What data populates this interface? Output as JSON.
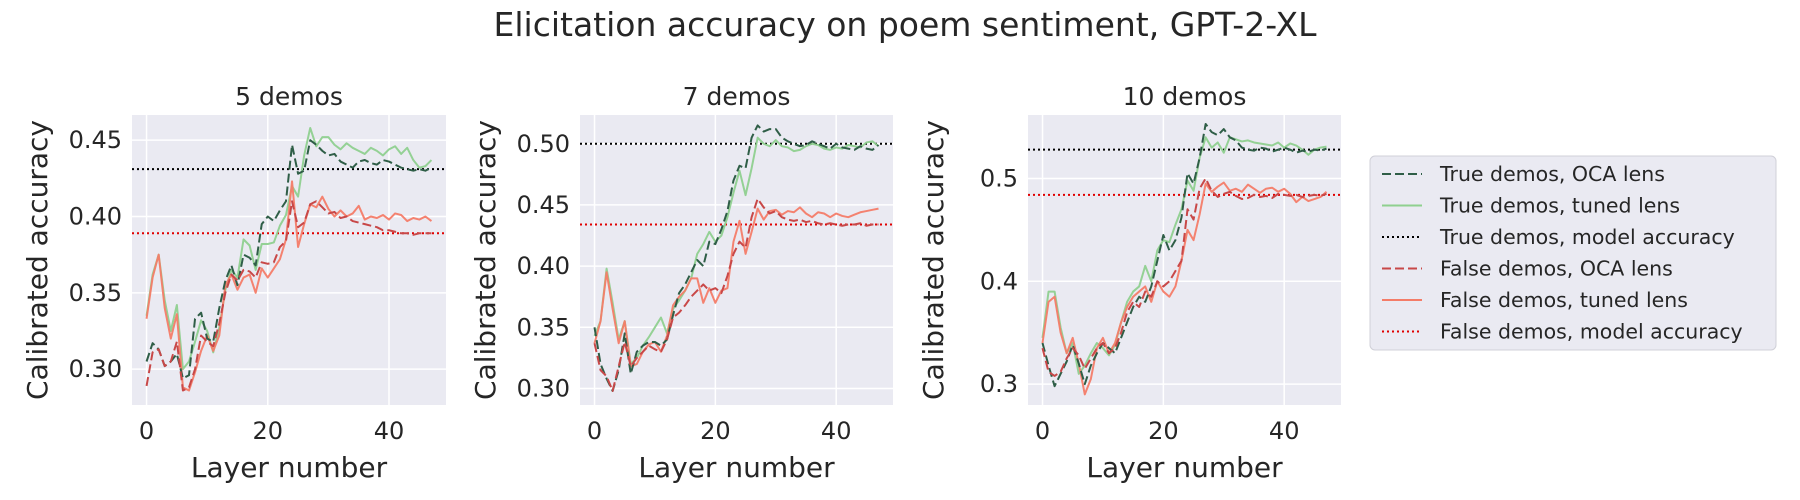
{
  "figure": {
    "title": "Elicitation accuracy on poem sentiment, GPT-2-XL"
  },
  "legend": {
    "placement": "right",
    "entries": [
      {
        "label": "True demos, OCA lens",
        "color": "#2f5e47",
        "style": "dashed"
      },
      {
        "label": "True demos, tuned lens",
        "color": "#8fd08f",
        "style": "solid"
      },
      {
        "label": "True demos, model accuracy",
        "color": "#000000",
        "style": "dotted"
      },
      {
        "label": "False demos, OCA lens",
        "color": "#c84848",
        "style": "dashed"
      },
      {
        "label": "False demos, tuned lens",
        "color": "#f47c68",
        "style": "solid"
      },
      {
        "label": "False demos, model accuracy",
        "color": "#e00000",
        "style": "dotted"
      }
    ]
  },
  "chart_data": [
    {
      "type": "line",
      "title": "5 demos",
      "xlabel": "Layer number",
      "ylabel": "Calibrated accuracy",
      "xlim": [
        -2.4,
        49.4
      ],
      "ylim": [
        0.2765,
        0.4665
      ],
      "xticks": [
        0,
        20,
        40
      ],
      "yticks": [
        0.3,
        0.35,
        0.4,
        0.45
      ],
      "ytick_labels": [
        "0.30",
        "0.35",
        "0.40",
        "0.45"
      ],
      "grid": true,
      "hlines": [
        {
          "name": "True demos, model accuracy",
          "y": 0.431
        },
        {
          "name": "False demos, model accuracy",
          "y": 0.389
        }
      ],
      "series": [
        {
          "name": "True demos, OCA lens",
          "values": [
            0.305,
            0.317,
            0.313,
            0.302,
            0.305,
            0.31,
            0.294,
            0.296,
            0.333,
            0.337,
            0.32,
            0.318,
            0.34,
            0.358,
            0.368,
            0.355,
            0.375,
            0.373,
            0.368,
            0.395,
            0.4,
            0.397,
            0.404,
            0.41,
            0.447,
            0.428,
            0.43,
            0.45,
            0.447,
            0.443,
            0.44,
            0.441,
            0.436,
            0.434,
            0.432,
            0.436,
            0.437,
            0.435,
            0.434,
            0.437,
            0.436,
            0.434,
            0.432,
            0.431,
            0.43,
            0.431,
            0.43,
            0.432
          ]
        },
        {
          "name": "True demos, tuned lens",
          "values": [
            0.335,
            0.362,
            0.375,
            0.345,
            0.325,
            0.342,
            0.3,
            0.305,
            0.318,
            0.332,
            0.325,
            0.311,
            0.327,
            0.352,
            0.365,
            0.36,
            0.385,
            0.381,
            0.365,
            0.382,
            0.382,
            0.383,
            0.394,
            0.401,
            0.42,
            0.413,
            0.44,
            0.458,
            0.446,
            0.452,
            0.452,
            0.447,
            0.444,
            0.448,
            0.445,
            0.443,
            0.441,
            0.445,
            0.443,
            0.44,
            0.444,
            0.446,
            0.441,
            0.445,
            0.437,
            0.432,
            0.433,
            0.437
          ]
        },
        {
          "name": "False demos, OCA lens",
          "values": [
            0.289,
            0.311,
            0.313,
            0.302,
            0.305,
            0.318,
            0.286,
            0.288,
            0.3,
            0.322,
            0.318,
            0.315,
            0.33,
            0.35,
            0.362,
            0.358,
            0.365,
            0.364,
            0.36,
            0.37,
            0.369,
            0.37,
            0.38,
            0.384,
            0.41,
            0.393,
            0.396,
            0.408,
            0.41,
            0.406,
            0.402,
            0.403,
            0.399,
            0.4,
            0.397,
            0.396,
            0.395,
            0.394,
            0.393,
            0.391,
            0.391,
            0.39,
            0.389,
            0.389,
            0.388,
            0.389,
            0.389,
            0.389
          ]
        },
        {
          "name": "False demos, tuned lens",
          "values": [
            0.333,
            0.36,
            0.375,
            0.34,
            0.32,
            0.336,
            0.288,
            0.286,
            0.298,
            0.312,
            0.322,
            0.312,
            0.322,
            0.355,
            0.362,
            0.352,
            0.36,
            0.362,
            0.35,
            0.366,
            0.36,
            0.366,
            0.372,
            0.385,
            0.423,
            0.38,
            0.395,
            0.408,
            0.406,
            0.413,
            0.405,
            0.4,
            0.404,
            0.4,
            0.402,
            0.407,
            0.398,
            0.4,
            0.399,
            0.401,
            0.398,
            0.402,
            0.401,
            0.397,
            0.399,
            0.398,
            0.4,
            0.397
          ]
        }
      ]
    },
    {
      "type": "line",
      "title": "7 demos",
      "xlabel": "Layer number",
      "ylabel": "Calibrated accuracy",
      "xlim": [
        -2.4,
        49.4
      ],
      "ylim": [
        0.2865,
        0.5235
      ],
      "xticks": [
        0,
        20,
        40
      ],
      "yticks": [
        0.3,
        0.35,
        0.4,
        0.45,
        0.5
      ],
      "ytick_labels": [
        "0.30",
        "0.35",
        "0.40",
        "0.45",
        "0.50"
      ],
      "grid": true,
      "hlines": [
        {
          "name": "True demos, model accuracy",
          "y": 0.5
        },
        {
          "name": "False demos, model accuracy",
          "y": 0.434
        }
      ],
      "series": [
        {
          "name": "True demos, OCA lens",
          "values": [
            0.35,
            0.32,
            0.308,
            0.298,
            0.315,
            0.345,
            0.312,
            0.33,
            0.335,
            0.338,
            0.338,
            0.335,
            0.34,
            0.36,
            0.378,
            0.385,
            0.395,
            0.405,
            0.4,
            0.42,
            0.418,
            0.43,
            0.445,
            0.47,
            0.482,
            0.48,
            0.505,
            0.515,
            0.51,
            0.512,
            0.512,
            0.505,
            0.502,
            0.5,
            0.498,
            0.499,
            0.502,
            0.5,
            0.498,
            0.496,
            0.5,
            0.497,
            0.496,
            0.495,
            0.498,
            0.496,
            0.495,
            0.499
          ]
        },
        {
          "name": "True demos, tuned lens",
          "values": [
            0.343,
            0.355,
            0.398,
            0.37,
            0.34,
            0.355,
            0.32,
            0.325,
            0.335,
            0.342,
            0.35,
            0.358,
            0.345,
            0.365,
            0.372,
            0.38,
            0.39,
            0.41,
            0.418,
            0.428,
            0.42,
            0.425,
            0.44,
            0.46,
            0.478,
            0.458,
            0.48,
            0.505,
            0.5,
            0.498,
            0.503,
            0.498,
            0.497,
            0.494,
            0.495,
            0.498,
            0.5,
            0.499,
            0.496,
            0.495,
            0.497,
            0.496,
            0.499,
            0.498,
            0.497,
            0.501,
            0.502,
            0.498
          ]
        },
        {
          "name": "False demos, OCA lens",
          "values": [
            0.337,
            0.315,
            0.31,
            0.298,
            0.318,
            0.338,
            0.318,
            0.325,
            0.33,
            0.335,
            0.332,
            0.33,
            0.34,
            0.358,
            0.362,
            0.368,
            0.375,
            0.38,
            0.385,
            0.38,
            0.382,
            0.378,
            0.392,
            0.41,
            0.42,
            0.415,
            0.44,
            0.455,
            0.448,
            0.443,
            0.445,
            0.44,
            0.438,
            0.437,
            0.438,
            0.436,
            0.437,
            0.435,
            0.434,
            0.435,
            0.434,
            0.433,
            0.434,
            0.434,
            0.435,
            0.433,
            0.434,
            0.434
          ]
        },
        {
          "name": "False demos, tuned lens",
          "values": [
            0.337,
            0.355,
            0.395,
            0.365,
            0.337,
            0.355,
            0.318,
            0.32,
            0.33,
            0.336,
            0.338,
            0.33,
            0.343,
            0.368,
            0.375,
            0.38,
            0.39,
            0.39,
            0.37,
            0.382,
            0.37,
            0.38,
            0.382,
            0.42,
            0.437,
            0.41,
            0.428,
            0.447,
            0.438,
            0.445,
            0.446,
            0.442,
            0.445,
            0.444,
            0.448,
            0.443,
            0.44,
            0.444,
            0.443,
            0.44,
            0.443,
            0.441,
            0.44,
            0.442,
            0.444,
            0.445,
            0.446,
            0.447
          ]
        }
      ]
    },
    {
      "type": "line",
      "title": "10 demos",
      "xlabel": "Layer number",
      "ylabel": "Calibrated accuracy",
      "xlim": [
        -2.4,
        49.4
      ],
      "ylim": [
        0.2797,
        0.5617
      ],
      "xticks": [
        0,
        20,
        40
      ],
      "yticks": [
        0.3,
        0.4,
        0.5
      ],
      "ytick_labels": [
        "0.3",
        "0.4",
        "0.5"
      ],
      "grid": true,
      "hlines": [
        {
          "name": "True demos, model accuracy",
          "y": 0.528
        },
        {
          "name": "False demos, model accuracy",
          "y": 0.484
        }
      ],
      "series": [
        {
          "name": "True demos, OCA lens",
          "values": [
            0.34,
            0.318,
            0.298,
            0.31,
            0.322,
            0.338,
            0.32,
            0.3,
            0.318,
            0.33,
            0.34,
            0.335,
            0.33,
            0.345,
            0.36,
            0.375,
            0.385,
            0.38,
            0.395,
            0.42,
            0.445,
            0.43,
            0.44,
            0.462,
            0.505,
            0.495,
            0.52,
            0.553,
            0.545,
            0.542,
            0.548,
            0.54,
            0.537,
            0.53,
            0.528,
            0.527,
            0.53,
            0.529,
            0.526,
            0.528,
            0.53,
            0.528,
            0.525,
            0.527,
            0.526,
            0.528,
            0.527,
            0.529
          ]
        },
        {
          "name": "True demos, tuned lens",
          "values": [
            0.345,
            0.39,
            0.39,
            0.355,
            0.33,
            0.34,
            0.31,
            0.318,
            0.33,
            0.34,
            0.335,
            0.328,
            0.338,
            0.36,
            0.38,
            0.39,
            0.395,
            0.415,
            0.4,
            0.43,
            0.44,
            0.438,
            0.455,
            0.47,
            0.498,
            0.488,
            0.52,
            0.54,
            0.53,
            0.535,
            0.525,
            0.54,
            0.538,
            0.536,
            0.537,
            0.535,
            0.534,
            0.533,
            0.532,
            0.535,
            0.53,
            0.534,
            0.532,
            0.528,
            0.523,
            0.528,
            0.53,
            0.531
          ]
        },
        {
          "name": "False demos, OCA lens",
          "values": [
            0.335,
            0.312,
            0.308,
            0.312,
            0.325,
            0.335,
            0.328,
            0.315,
            0.325,
            0.335,
            0.34,
            0.33,
            0.335,
            0.35,
            0.37,
            0.38,
            0.375,
            0.39,
            0.385,
            0.4,
            0.395,
            0.4,
            0.41,
            0.42,
            0.47,
            0.46,
            0.49,
            0.5,
            0.488,
            0.482,
            0.485,
            0.487,
            0.483,
            0.48,
            0.481,
            0.484,
            0.482,
            0.483,
            0.481,
            0.485,
            0.484,
            0.483,
            0.484,
            0.482,
            0.483,
            0.484,
            0.483,
            0.485
          ]
        },
        {
          "name": "False demos, tuned lens",
          "values": [
            0.34,
            0.38,
            0.385,
            0.35,
            0.33,
            0.345,
            0.32,
            0.29,
            0.305,
            0.335,
            0.345,
            0.33,
            0.34,
            0.36,
            0.375,
            0.385,
            0.39,
            0.395,
            0.38,
            0.4,
            0.39,
            0.385,
            0.395,
            0.42,
            0.45,
            0.44,
            0.465,
            0.495,
            0.487,
            0.492,
            0.496,
            0.488,
            0.49,
            0.487,
            0.494,
            0.49,
            0.486,
            0.49,
            0.491,
            0.487,
            0.49,
            0.485,
            0.477,
            0.482,
            0.478,
            0.48,
            0.482,
            0.487
          ]
        }
      ]
    }
  ]
}
